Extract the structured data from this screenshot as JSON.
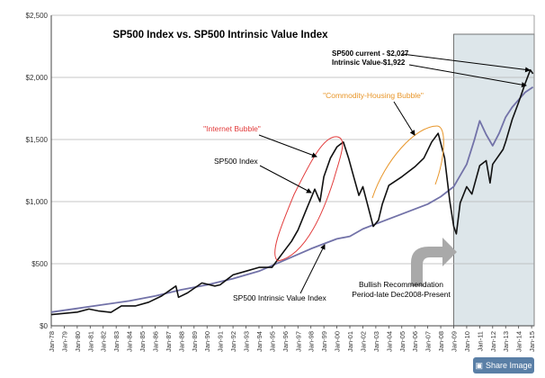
{
  "chart_data": {
    "type": "line",
    "title": "SP500 Index vs. SP500 Intrinsic Value Index",
    "xlabel": "",
    "ylabel": "",
    "ylim": [
      0,
      2500
    ],
    "y_ticks": [
      "$0",
      "$500",
      "$1,000",
      "$1,500",
      "$2,000",
      "$2,500"
    ],
    "y_tick_values": [
      0,
      500,
      1000,
      1500,
      2000,
      2500
    ],
    "x_tick_labels": [
      "Jan-78",
      "Jan-79",
      "Jan-80",
      "Jan-81",
      "Jan-82",
      "Jan-83",
      "Jan-84",
      "Jan-85",
      "Jan-86",
      "Jan-87",
      "Jan-88",
      "Jan-89",
      "Jan-90",
      "Jan-91",
      "Jan-92",
      "Jan-93",
      "Jan-94",
      "Jan-95",
      "Jan-96",
      "Jan-97",
      "Jan-98",
      "Jan-99",
      "Jan-00",
      "Jan-01",
      "Jan-02",
      "Jan-03",
      "Jan-04",
      "Jan-05",
      "Jan-06",
      "Jan-07",
      "Jan-08",
      "Jan-09",
      "Jan-10",
      "Jan-11",
      "Jan-12",
      "Jan-13",
      "Jan-14",
      "Jan-15"
    ],
    "x_range": [
      1978,
      2015.2
    ],
    "shaded_region": [
      2009,
      2015.2
    ],
    "series": [
      {
        "name": "SP500 Index",
        "color": "#111111",
        "points": [
          [
            1978.0,
            90
          ],
          [
            1979.0,
            100
          ],
          [
            1980.0,
            110
          ],
          [
            1980.9,
            135
          ],
          [
            1981.6,
            120
          ],
          [
            1982.6,
            108
          ],
          [
            1983.4,
            160
          ],
          [
            1984.5,
            160
          ],
          [
            1985.5,
            190
          ],
          [
            1986.5,
            240
          ],
          [
            1987.6,
            320
          ],
          [
            1987.8,
            230
          ],
          [
            1988.5,
            265
          ],
          [
            1989.6,
            345
          ],
          [
            1990.6,
            320
          ],
          [
            1991.0,
            330
          ],
          [
            1992.0,
            410
          ],
          [
            1993.0,
            440
          ],
          [
            1994.0,
            470
          ],
          [
            1995.0,
            470
          ],
          [
            1996.0,
            610
          ],
          [
            1996.5,
            680
          ],
          [
            1997.0,
            770
          ],
          [
            1997.7,
            950
          ],
          [
            1998.3,
            1100
          ],
          [
            1998.7,
            1000
          ],
          [
            1999.0,
            1200
          ],
          [
            1999.5,
            1350
          ],
          [
            2000.0,
            1440
          ],
          [
            2000.5,
            1480
          ],
          [
            2000.9,
            1350
          ],
          [
            2001.3,
            1200
          ],
          [
            2001.7,
            1050
          ],
          [
            2002.0,
            1120
          ],
          [
            2002.5,
            920
          ],
          [
            2002.8,
            800
          ],
          [
            2003.2,
            850
          ],
          [
            2003.5,
            980
          ],
          [
            2004.0,
            1130
          ],
          [
            2005.0,
            1200
          ],
          [
            2006.0,
            1280
          ],
          [
            2006.7,
            1350
          ],
          [
            2007.3,
            1480
          ],
          [
            2007.8,
            1550
          ],
          [
            2008.3,
            1350
          ],
          [
            2008.7,
            1000
          ],
          [
            2009.0,
            800
          ],
          [
            2009.2,
            740
          ],
          [
            2009.5,
            990
          ],
          [
            2010.0,
            1120
          ],
          [
            2010.4,
            1060
          ],
          [
            2011.0,
            1290
          ],
          [
            2011.5,
            1330
          ],
          [
            2011.8,
            1150
          ],
          [
            2012.0,
            1300
          ],
          [
            2012.8,
            1420
          ],
          [
            2013.0,
            1480
          ],
          [
            2013.5,
            1660
          ],
          [
            2014.0,
            1800
          ],
          [
            2014.5,
            1950
          ],
          [
            2014.9,
            2060
          ],
          [
            2015.1,
            2030
          ]
        ]
      },
      {
        "name": "SP500 Intrinsic Value Index",
        "color": "#7272a8",
        "points": [
          [
            1978.0,
            110
          ],
          [
            1980.0,
            140
          ],
          [
            1982.0,
            170
          ],
          [
            1984.0,
            200
          ],
          [
            1986.0,
            240
          ],
          [
            1988.0,
            290
          ],
          [
            1990.0,
            330
          ],
          [
            1992.0,
            380
          ],
          [
            1994.0,
            440
          ],
          [
            1996.0,
            530
          ],
          [
            1998.0,
            620
          ],
          [
            1999.0,
            660
          ],
          [
            2000.0,
            700
          ],
          [
            2001.0,
            720
          ],
          [
            2002.0,
            780
          ],
          [
            2003.0,
            820
          ],
          [
            2004.0,
            860
          ],
          [
            2005.0,
            900
          ],
          [
            2006.0,
            940
          ],
          [
            2007.0,
            980
          ],
          [
            2008.0,
            1040
          ],
          [
            2009.0,
            1120
          ],
          [
            2010.0,
            1300
          ],
          [
            2010.6,
            1500
          ],
          [
            2011.0,
            1650
          ],
          [
            2011.5,
            1540
          ],
          [
            2012.0,
            1450
          ],
          [
            2012.5,
            1550
          ],
          [
            2013.0,
            1680
          ],
          [
            2013.5,
            1760
          ],
          [
            2014.0,
            1820
          ],
          [
            2014.5,
            1880
          ],
          [
            2015.1,
            1922
          ]
        ]
      }
    ],
    "annotations": {
      "current_label": "SP500 current - $2,027",
      "intrinsic_label": "Intrinsic Value-$1,922",
      "commodity_label": "\"Commodity-Housing Bubble\"",
      "internet_label": "\"Internet Bubble\"",
      "sp500_label": "SP500 Index",
      "intrinsic_series_label": "SP500 Intrinsic Value Index",
      "bullish_line1": "Bullish Recommendation",
      "bullish_line2": "Period-late Dec2008-Present"
    },
    "colors": {
      "internet": "#e23b3b",
      "commodity": "#e8962a",
      "shade": "#dde6ea",
      "arrow": "#a9a9a9",
      "grid": "#c8c8c8"
    }
  },
  "ui": {
    "share_label": "Share Image",
    "share_icon": "share-icon"
  }
}
